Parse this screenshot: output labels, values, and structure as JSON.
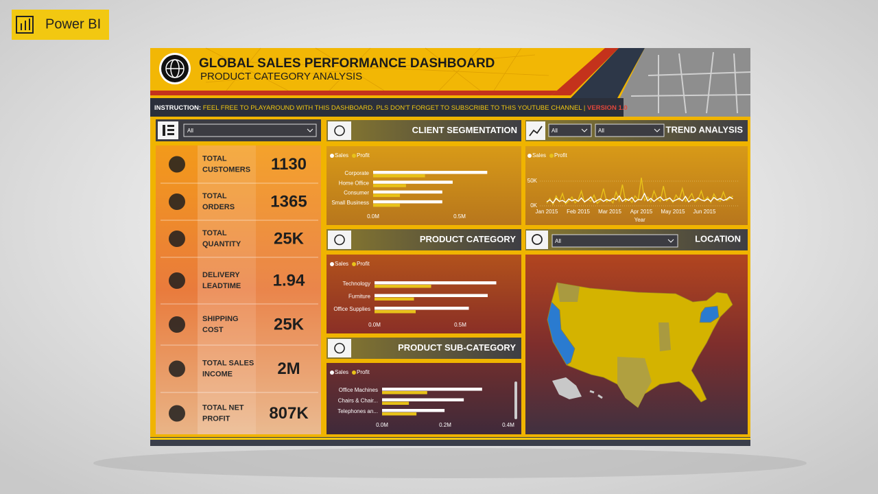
{
  "badge": "Power BI",
  "header": {
    "title": "GLOBAL SALES PERFORMANCE DASHBOARD",
    "subtitle": "PRODUCT CATEGORY ANALYSIS",
    "instruction_label": "INSTRUCTION:",
    "instruction": " FEEL FREE TO PLAYAROUND WITH THIS DASHBOARD. PLS DON'T FORGET TO SUBSCRIBE TO THIS YOUTUBE CHANNEL | ",
    "version": "VERSION 1.0"
  },
  "filters": {
    "kpi": "All",
    "trend_1": "All",
    "trend_2": "All",
    "location": "All"
  },
  "kpis": [
    {
      "label": [
        "TOTAL",
        "CUSTOMERS"
      ],
      "value": "1130"
    },
    {
      "label": [
        "TOTAL",
        "ORDERS"
      ],
      "value": "1365"
    },
    {
      "label": [
        "TOTAL",
        "QUANTITY"
      ],
      "value": "25K"
    },
    {
      "label": [
        "DELIVERY",
        "LEADTIME"
      ],
      "value": "1.94"
    },
    {
      "label": [
        "SHIPPING",
        "COST"
      ],
      "value": "25K"
    },
    {
      "label": [
        "TOTAL SALES",
        "INCOME"
      ],
      "value": "2M"
    },
    {
      "label": [
        "TOTAL NET",
        "PROFIT"
      ],
      "value": "807K"
    }
  ],
  "location_title": "LOCATION",
  "chart_data": [
    {
      "type": "bar",
      "title": "CLIENT SEGMENTATION",
      "categories": [
        "Corporate",
        "Home Office",
        "Consumer",
        "Small Business"
      ],
      "series": [
        {
          "name": "Sales",
          "color": "#ffffff",
          "values": [
            660000,
            460000,
            400000,
            400000
          ]
        },
        {
          "name": "Profit",
          "color": "#e8c21a",
          "values": [
            300000,
            190000,
            155000,
            155000
          ]
        }
      ],
      "xlim": [
        0,
        700000
      ],
      "xticks": [
        {
          "value": 0,
          "label": "0.0M"
        },
        {
          "value": 500000,
          "label": "0.5M"
        }
      ]
    },
    {
      "type": "bar",
      "title": "PRODUCT CATEGORY",
      "categories": [
        "Technology",
        "Furniture",
        "Office Supplies"
      ],
      "series": [
        {
          "name": "Sales",
          "color": "#ffffff",
          "values": [
            710000,
            660000,
            550000
          ]
        },
        {
          "name": "Profit",
          "color": "#e8c21a",
          "values": [
            330000,
            230000,
            240000
          ]
        }
      ],
      "xlim": [
        0,
        700000
      ],
      "xticks": [
        {
          "value": 0,
          "label": "0.0M"
        },
        {
          "value": 500000,
          "label": "0.5M"
        }
      ]
    },
    {
      "type": "bar",
      "title": "PRODUCT SUB-CATEGORY",
      "categories": [
        "Office Machines",
        "Chairs & Chair...",
        "Telephones an..."
      ],
      "series": [
        {
          "name": "Sales",
          "color": "#ffffff",
          "values": [
            317000,
            259000,
            198000
          ]
        },
        {
          "name": "Profit",
          "color": "#e8c21a",
          "values": [
            143000,
            85000,
            109000
          ]
        }
      ],
      "xlim": [
        0,
        400000
      ],
      "xticks": [
        {
          "value": 0,
          "label": "0.0M"
        },
        {
          "value": 200000,
          "label": "0.2M"
        },
        {
          "value": 400000,
          "label": "0.4M"
        }
      ]
    },
    {
      "type": "line",
      "title": "TREND ANALYSIS",
      "x_label": "Year",
      "categories": [
        "Jan 2015",
        null,
        null,
        null,
        null,
        null,
        null,
        null,
        null,
        null,
        "Feb 2015",
        null,
        null,
        null,
        null,
        null,
        null,
        null,
        null,
        null,
        "Mar 2015",
        null,
        null,
        null,
        null,
        null,
        null,
        null,
        null,
        null,
        "Apr 2015",
        null,
        null,
        null,
        null,
        null,
        null,
        null,
        null,
        null,
        "May 2015",
        null,
        null,
        null,
        null,
        null,
        null,
        null,
        null,
        null,
        "Jun 2015",
        null,
        null,
        null,
        null,
        null,
        null,
        null,
        null,
        null
      ],
      "series": [
        {
          "name": "Profit",
          "color": "#e8c21a",
          "values": [
            5000,
            15000,
            3000,
            20000,
            8000,
            25000,
            4000,
            10000,
            18000,
            6000,
            12000,
            30000,
            7000,
            14000,
            9000,
            22000,
            5000,
            11000,
            35000,
            8000,
            13000,
            6000,
            28000,
            10000,
            43000,
            9000,
            15000,
            7000,
            20000,
            12000,
            57000,
            11000,
            18000,
            8000,
            30000,
            14000,
            9000,
            40000,
            10000,
            16000,
            7000,
            22000,
            12000,
            35000,
            9000,
            15000,
            25000,
            8000,
            13000,
            30000,
            10000,
            18000,
            7000,
            24000,
            12000,
            9000,
            28000,
            11000,
            15000,
            20000
          ]
        },
        {
          "name": "Sales",
          "color": "#ffffff",
          "values": [
            8000,
            12000,
            6000,
            15000,
            9000,
            11000,
            7000,
            14000,
            10000,
            13000,
            9000,
            16000,
            8000,
            12000,
            18000,
            7000,
            11000,
            14000,
            9000,
            13000,
            10000,
            15000,
            12000,
            20000,
            9000,
            14000,
            11000,
            17000,
            8000,
            13000,
            12000,
            25000,
            10000,
            15000,
            9000,
            14000,
            18000,
            11000,
            13000,
            16000,
            9000,
            12000,
            15000,
            10000,
            19000,
            8000,
            13000,
            11000,
            16000,
            12000,
            10000,
            14000,
            9000,
            17000,
            12000,
            15000,
            11000,
            13000,
            18000,
            14000
          ]
        }
      ],
      "legend_order": [
        "Sales",
        "Profit"
      ],
      "ylim": [
        0,
        60000
      ],
      "yticks": [
        {
          "value": 0,
          "label": "0K"
        },
        {
          "value": 50000,
          "label": "50K"
        }
      ]
    }
  ]
}
